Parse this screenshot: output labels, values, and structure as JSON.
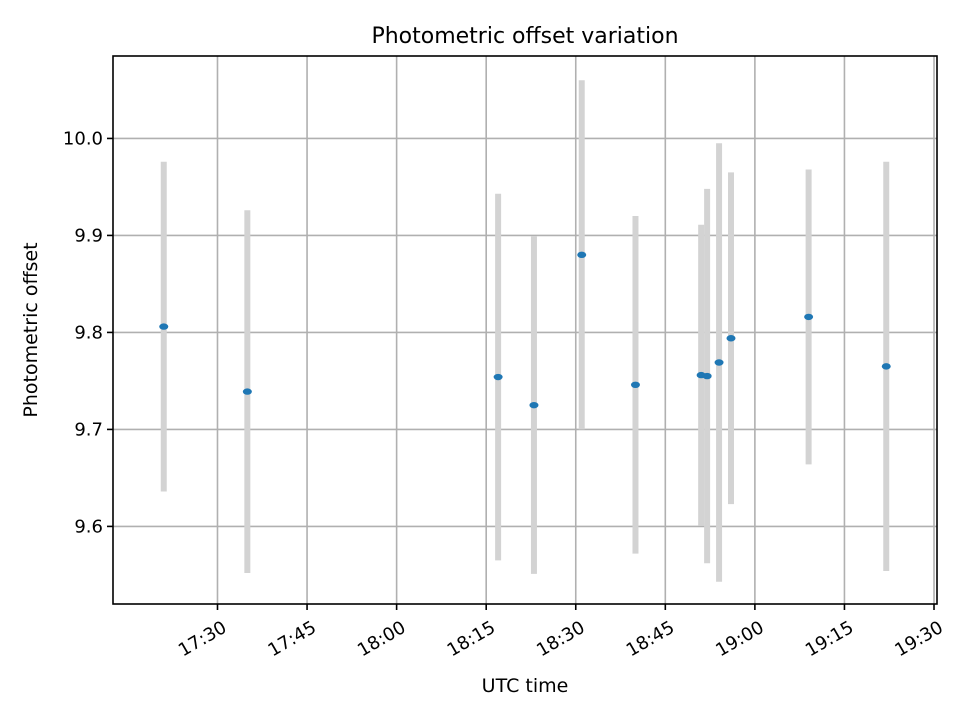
{
  "chart_data": {
    "type": "scatter",
    "title": "Photometric offset variation",
    "xlabel": "UTC time",
    "ylabel": "Photometric offset",
    "grid": true,
    "xlim": [
      "17:15",
      "19:30"
    ],
    "ylim": [
      9.52,
      10.085
    ],
    "x_ticks": [
      "17:30",
      "17:45",
      "18:00",
      "18:15",
      "18:30",
      "18:45",
      "19:00",
      "19:15",
      "19:30"
    ],
    "y_ticks": [
      9.6,
      9.7,
      9.8,
      9.9,
      10.0
    ],
    "marker_color": "#1f77b4",
    "errorbar_color": "#d3d3d3",
    "points": [
      {
        "t": "17:21",
        "y": 9.806,
        "err": 0.17
      },
      {
        "t": "17:35",
        "y": 9.739,
        "err": 0.187
      },
      {
        "t": "18:17",
        "y": 9.754,
        "err": 0.189
      },
      {
        "t": "18:23",
        "y": 9.725,
        "err": 0.174
      },
      {
        "t": "18:31",
        "y": 9.88,
        "err": 0.18
      },
      {
        "t": "18:40",
        "y": 9.746,
        "err": 0.174
      },
      {
        "t": "18:51",
        "y": 9.756,
        "err": 0.155
      },
      {
        "t": "18:52",
        "y": 9.755,
        "err": 0.193
      },
      {
        "t": "18:54",
        "y": 9.769,
        "err": 0.226
      },
      {
        "t": "18:56",
        "y": 9.794,
        "err": 0.171
      },
      {
        "t": "19:09",
        "y": 9.816,
        "err": 0.152
      },
      {
        "t": "19:22",
        "y": 9.765,
        "err": 0.211
      }
    ]
  }
}
